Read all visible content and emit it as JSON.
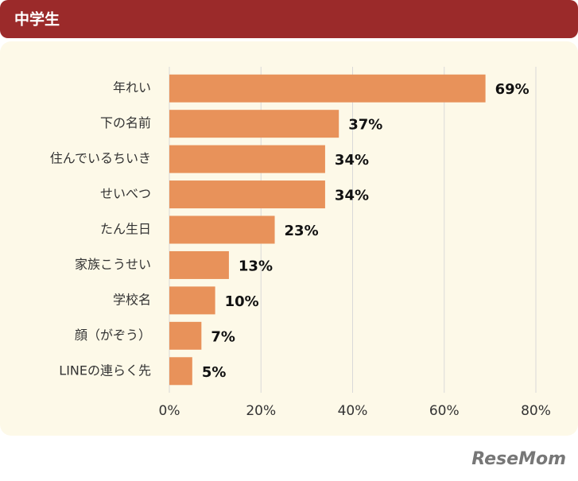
{
  "header": {
    "title": "中学生"
  },
  "chart_data": {
    "type": "bar",
    "orientation": "horizontal",
    "categories": [
      "年れい",
      "下の名前",
      "住んでいるちいき",
      "せいべつ",
      "たん生日",
      "家族こうせい",
      "学校名",
      "顔（がぞう）",
      "LINEの連らく先"
    ],
    "values": [
      69,
      37,
      34,
      34,
      23,
      13,
      10,
      7,
      5
    ],
    "value_labels": [
      "69%",
      "37%",
      "34%",
      "34%",
      "23%",
      "13%",
      "10%",
      "7%",
      "5%"
    ],
    "color": "#e8925a",
    "xlim": [
      0,
      80
    ],
    "xticks": [
      {
        "value": 0,
        "label": "0%"
      },
      {
        "value": 20,
        "label": "20%"
      },
      {
        "value": 40,
        "label": "40%"
      },
      {
        "value": 60,
        "label": "60%"
      },
      {
        "value": 80,
        "label": "80%"
      }
    ],
    "grid": true
  },
  "watermark": "ReseMom"
}
